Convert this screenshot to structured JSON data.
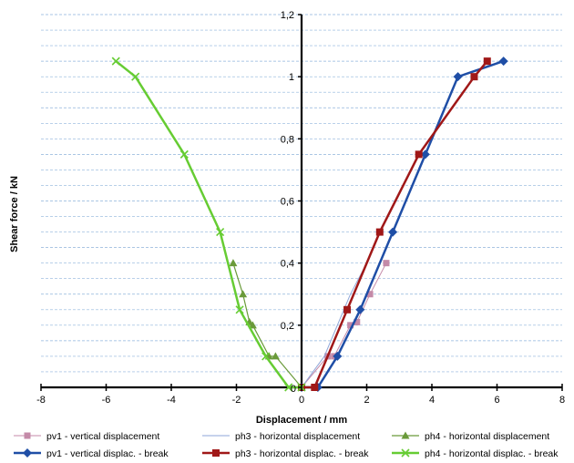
{
  "chart_data": {
    "type": "line",
    "xlabel": "Displacement / mm",
    "ylabel": "Shear force / kN",
    "xlim": [
      -8,
      8
    ],
    "ylim": [
      0,
      1.2
    ],
    "x_ticks": [
      "-8",
      "-6",
      "-4",
      "-2",
      "0",
      "2",
      "4",
      "6",
      "8"
    ],
    "x_tick_values": [
      -8,
      -6,
      -4,
      -2,
      0,
      2,
      4,
      6,
      8
    ],
    "y_ticks": [
      "0",
      "0,2",
      "0,4",
      "0,6",
      "0,8",
      "1",
      "1,2"
    ],
    "y_tick_values": [
      0,
      0.2,
      0.4,
      0.6,
      0.8,
      1.0,
      1.2
    ],
    "grid": "horizontal dashed",
    "legend_position": "bottom",
    "series": [
      {
        "name": "pv1 - vertical displacement",
        "color": "#c48aa8",
        "marker": "square",
        "line_width": 1,
        "x": [
          0,
          0.8,
          1.0,
          1.5,
          1.7,
          2.1,
          2.6
        ],
        "y": [
          0,
          0.1,
          0.1,
          0.2,
          0.21,
          0.3,
          0.4
        ]
      },
      {
        "name": "ph3 - horizontal displacement",
        "color": "#8ea6d8",
        "marker": "none",
        "line_width": 1,
        "x": [
          0,
          0.7,
          1.1,
          1.5,
          2.0
        ],
        "y": [
          0,
          0.1,
          0.2,
          0.3,
          0.4
        ]
      },
      {
        "name": "ph4 - horizontal displacement",
        "color": "#6a9a3a",
        "marker": "triangle",
        "line_width": 1.2,
        "x": [
          0,
          -0.8,
          -1.0,
          -1.5,
          -1.6,
          -1.8,
          -2.1
        ],
        "y": [
          0,
          0.1,
          0.1,
          0.2,
          0.21,
          0.3,
          0.4
        ]
      },
      {
        "name": "pv1 - vertical displac. - break",
        "color": "#1f4ea6",
        "marker": "diamond",
        "line_width": 2.5,
        "x": [
          0,
          0.5,
          1.1,
          1.8,
          2.8,
          3.8,
          4.8,
          6.2
        ],
        "y": [
          0,
          0,
          0.1,
          0.25,
          0.5,
          0.75,
          1.0,
          1.05
        ]
      },
      {
        "name": "ph3 - horizontal displac. - break",
        "color": "#a01818",
        "marker": "square",
        "line_width": 2.5,
        "x": [
          0,
          0.4,
          1.4,
          2.4,
          3.6,
          5.3,
          5.7
        ],
        "y": [
          0,
          0,
          0.25,
          0.5,
          0.75,
          1.0,
          1.05
        ]
      },
      {
        "name": "ph4 - horizontal displac. - break",
        "color": "#66cc33",
        "marker": "x",
        "line_width": 2.5,
        "x": [
          0,
          -0.4,
          -1.1,
          -1.9,
          -2.5,
          -3.6,
          -5.1,
          -5.7
        ],
        "y": [
          0,
          0,
          0.1,
          0.25,
          0.5,
          0.75,
          1.0,
          1.05
        ]
      }
    ]
  }
}
